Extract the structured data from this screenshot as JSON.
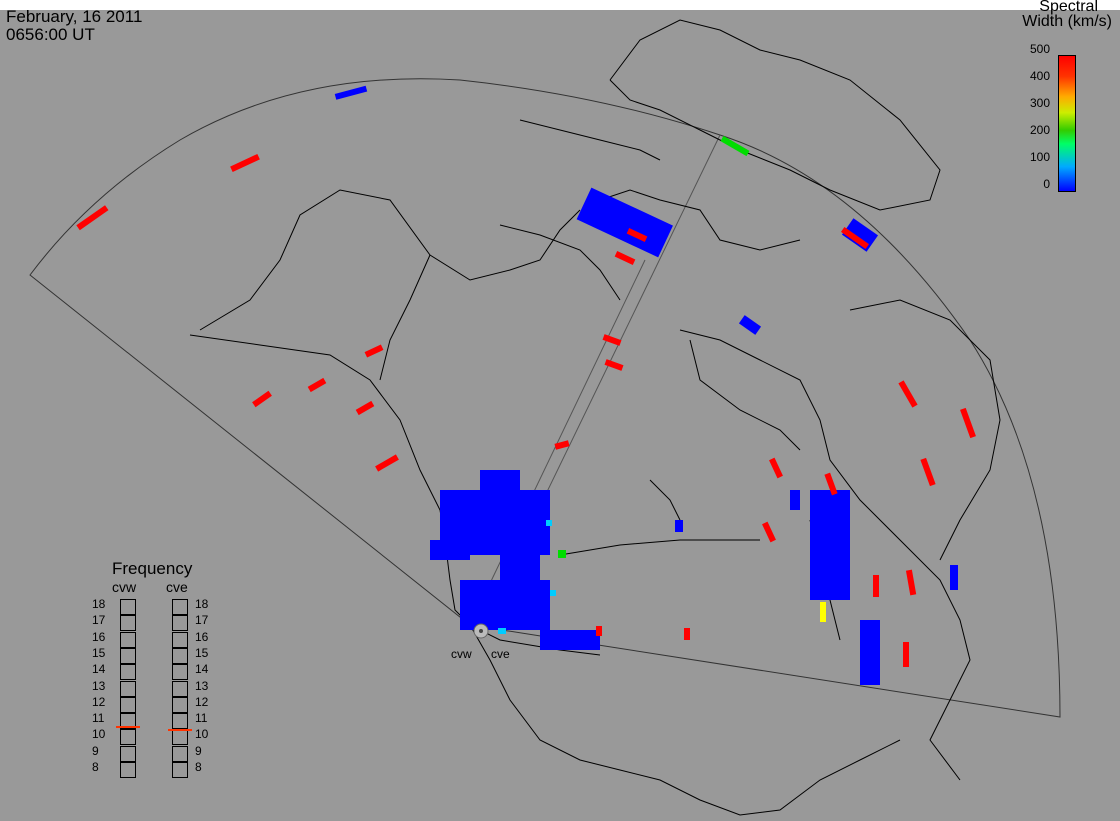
{
  "header": {
    "date": "February, 16 2011",
    "time": "0656:00 UT"
  },
  "colorbar": {
    "title_line1": "Spectral",
    "title_line2": "Width (km/s)",
    "ticks": [
      "500",
      "400",
      "300",
      "200",
      "100",
      "0"
    ]
  },
  "frequency_panel": {
    "title": "Frequency",
    "left_label": "cvw",
    "right_label": "cve",
    "scale": [
      "18",
      "17",
      "16",
      "15",
      "14",
      "13",
      "12",
      "11",
      "10",
      "9",
      "8"
    ],
    "cvw_frequency": 10.7,
    "cve_frequency": 10.5
  },
  "sites": {
    "west": "cvw",
    "east": "cve"
  },
  "colors": {
    "background": "#999999",
    "coast": "#000000",
    "low": "#0000ff",
    "high": "#ff0000",
    "mid": "#00dd00",
    "cyan": "#00ccff",
    "yellow": "#ffff00"
  }
}
